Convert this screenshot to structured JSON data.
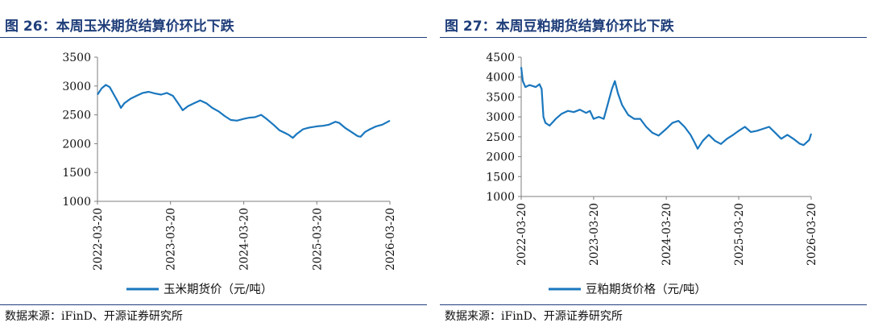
{
  "left": {
    "title": "图 26：本周玉米期货结算价环比下跌",
    "source": "数据来源：iFinD、开源证券研究所",
    "chart_data": {
      "type": "line",
      "x_start": "2022-03-20",
      "x_end": "2026-03-20",
      "xticks": [
        "2022-03-20",
        "2023-03-20",
        "2024-03-20",
        "2025-03-20",
        "2026-03-20"
      ],
      "yticks": [
        "3500",
        "3000",
        "2500",
        "2000",
        "1500",
        "1000"
      ],
      "ylim": [
        1000,
        3500
      ],
      "grid": false,
      "legend": "bottom",
      "color": "#1a77be",
      "series": [
        {
          "name": "玉米期货价（元/吨）",
          "points": [
            [
              "2022-03-20",
              2850
            ],
            [
              "2022-04-10",
              2960
            ],
            [
              "2022-05-01",
              3020
            ],
            [
              "2022-05-20",
              2980
            ],
            [
              "2022-06-10",
              2850
            ],
            [
              "2022-07-01",
              2720
            ],
            [
              "2022-07-15",
              2620
            ],
            [
              "2022-08-01",
              2700
            ],
            [
              "2022-09-01",
              2780
            ],
            [
              "2022-10-01",
              2830
            ],
            [
              "2022-11-01",
              2880
            ],
            [
              "2022-12-01",
              2900
            ],
            [
              "2023-01-01",
              2870
            ],
            [
              "2023-02-01",
              2850
            ],
            [
              "2023-03-01",
              2880
            ],
            [
              "2023-04-01",
              2830
            ],
            [
              "2023-05-01",
              2680
            ],
            [
              "2023-05-20",
              2580
            ],
            [
              "2023-06-15",
              2650
            ],
            [
              "2023-07-15",
              2700
            ],
            [
              "2023-08-15",
              2750
            ],
            [
              "2023-09-15",
              2700
            ],
            [
              "2023-10-15",
              2620
            ],
            [
              "2023-11-15",
              2560
            ],
            [
              "2023-12-15",
              2480
            ],
            [
              "2024-01-15",
              2410
            ],
            [
              "2024-02-15",
              2400
            ],
            [
              "2024-03-20",
              2430
            ],
            [
              "2024-04-15",
              2450
            ],
            [
              "2024-05-15",
              2460
            ],
            [
              "2024-06-15",
              2500
            ],
            [
              "2024-07-15",
              2420
            ],
            [
              "2024-08-15",
              2330
            ],
            [
              "2024-09-15",
              2230
            ],
            [
              "2024-10-15",
              2180
            ],
            [
              "2024-11-01",
              2150
            ],
            [
              "2024-11-20",
              2100
            ],
            [
              "2024-12-10",
              2170
            ],
            [
              "2025-01-10",
              2250
            ],
            [
              "2025-02-10",
              2280
            ],
            [
              "2025-03-20",
              2300
            ],
            [
              "2025-04-20",
              2310
            ],
            [
              "2025-05-20",
              2330
            ],
            [
              "2025-06-20",
              2380
            ],
            [
              "2025-07-10",
              2360
            ],
            [
              "2025-08-10",
              2270
            ],
            [
              "2025-09-10",
              2200
            ],
            [
              "2025-10-10",
              2130
            ],
            [
              "2025-10-25",
              2120
            ],
            [
              "2025-11-15",
              2200
            ],
            [
              "2025-12-10",
              2250
            ],
            [
              "2026-01-10",
              2300
            ],
            [
              "2026-02-10",
              2330
            ],
            [
              "2026-03-10",
              2380
            ],
            [
              "2026-03-20",
              2400
            ]
          ]
        }
      ]
    }
  },
  "right": {
    "title": "图 27：本周豆粕期货结算价环比下跌",
    "source": "数据来源：iFinD、开源证券研究所",
    "chart_data": {
      "type": "line",
      "x_start": "2022-03-20",
      "x_end": "2026-03-20",
      "xticks": [
        "2022-03-20",
        "2023-03-20",
        "2024-03-20",
        "2025-03-20",
        "2026-03-20"
      ],
      "yticks": [
        "4500",
        "4000",
        "3500",
        "3000",
        "2500",
        "2000",
        "1500",
        "1000"
      ],
      "ylim": [
        1000,
        4500
      ],
      "grid": false,
      "legend": "bottom",
      "color": "#1a77be",
      "series": [
        {
          "name": "豆粕期货价格（元/吨）",
          "points": [
            [
              "2022-03-20",
              4250
            ],
            [
              "2022-03-28",
              3900
            ],
            [
              "2022-04-10",
              3750
            ],
            [
              "2022-05-01",
              3800
            ],
            [
              "2022-06-01",
              3750
            ],
            [
              "2022-06-20",
              3820
            ],
            [
              "2022-07-01",
              3700
            ],
            [
              "2022-07-10",
              3000
            ],
            [
              "2022-07-20",
              2850
            ],
            [
              "2022-08-10",
              2780
            ],
            [
              "2022-09-10",
              2950
            ],
            [
              "2022-10-10",
              3080
            ],
            [
              "2022-11-10",
              3150
            ],
            [
              "2022-12-10",
              3120
            ],
            [
              "2023-01-10",
              3180
            ],
            [
              "2023-02-10",
              3100
            ],
            [
              "2023-03-01",
              3150
            ],
            [
              "2023-03-20",
              2950
            ],
            [
              "2023-04-15",
              3000
            ],
            [
              "2023-05-10",
              2950
            ],
            [
              "2023-06-01",
              3350
            ],
            [
              "2023-06-20",
              3700
            ],
            [
              "2023-07-05",
              3900
            ],
            [
              "2023-07-20",
              3600
            ],
            [
              "2023-08-10",
              3300
            ],
            [
              "2023-09-10",
              3050
            ],
            [
              "2023-10-10",
              2950
            ],
            [
              "2023-11-10",
              2950
            ],
            [
              "2023-12-10",
              2750
            ],
            [
              "2024-01-10",
              2600
            ],
            [
              "2024-02-10",
              2530
            ],
            [
              "2024-03-20",
              2700
            ],
            [
              "2024-04-20",
              2850
            ],
            [
              "2024-05-20",
              2900
            ],
            [
              "2024-06-20",
              2750
            ],
            [
              "2024-07-20",
              2550
            ],
            [
              "2024-08-10",
              2350
            ],
            [
              "2024-08-25",
              2200
            ],
            [
              "2024-09-20",
              2400
            ],
            [
              "2024-10-20",
              2550
            ],
            [
              "2024-11-20",
              2400
            ],
            [
              "2024-12-20",
              2320
            ],
            [
              "2025-01-20",
              2450
            ],
            [
              "2025-02-20",
              2550
            ],
            [
              "2025-03-20",
              2650
            ],
            [
              "2025-04-20",
              2750
            ],
            [
              "2025-05-20",
              2620
            ],
            [
              "2025-06-20",
              2650
            ],
            [
              "2025-07-20",
              2700
            ],
            [
              "2025-08-20",
              2750
            ],
            [
              "2025-09-20",
              2600
            ],
            [
              "2025-10-20",
              2450
            ],
            [
              "2025-11-20",
              2550
            ],
            [
              "2025-12-20",
              2450
            ],
            [
              "2026-01-20",
              2330
            ],
            [
              "2026-02-10",
              2290
            ],
            [
              "2026-03-01",
              2380
            ],
            [
              "2026-03-10",
              2420
            ],
            [
              "2026-03-20",
              2580
            ]
          ]
        }
      ]
    }
  }
}
